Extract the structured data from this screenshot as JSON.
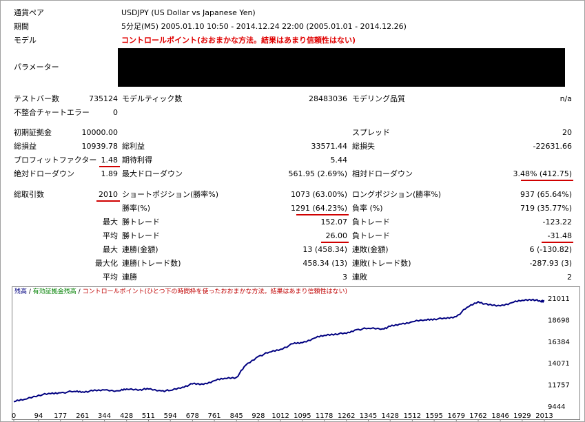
{
  "header": {
    "symbol_label": "通貨ペア",
    "symbol_value": "USDJPY (US Dollar vs Japanese Yen)",
    "period_label": "期間",
    "period_value": "5分足(M5) 2005.01.10 10:50 - 2014.12.24 22:00 (2005.01.01 - 2014.12.26)",
    "model_label": "モデル",
    "model_value": "コントロールポイント(おおまかな方法。結果はあまり信頼性はない)",
    "params_label": "パラメーター"
  },
  "stats": {
    "test_bars_label": "テストバー数",
    "test_bars": "735124",
    "model_ticks_label": "モデルティック数",
    "model_ticks": "28483036",
    "model_quality_label": "モデリング品質",
    "model_quality": "n/a",
    "mismatch_label": "不整合チャートエラー",
    "mismatch": "0",
    "initial_deposit_label": "初期証拠金",
    "initial_deposit": "10000.00",
    "spread_label": "スプレッド",
    "spread": "20",
    "net_profit_label": "総損益",
    "net_profit": "10939.78",
    "gross_profit_label": "総利益",
    "gross_profit": "33571.44",
    "gross_loss_label": "総損失",
    "gross_loss": "-22631.66",
    "profit_factor_label": "プロフィットファクター",
    "profit_factor": "1.48",
    "expected_payoff_label": "期待利得",
    "expected_payoff": "5.44",
    "abs_dd_label": "絶対ドローダウン",
    "abs_dd": "1.89",
    "max_dd_label": "最大ドローダウン",
    "max_dd": "561.95 (2.69%)",
    "rel_dd_label": "相対ドローダウン",
    "rel_dd": "3.48% (412.75)",
    "total_trades_label": "総取引数",
    "total_trades": "2010",
    "short_label": "ショートポジション(勝率%)",
    "short": "1073 (63.00%)",
    "long_label": "ロングポジション(勝率%)",
    "long": "937 (65.64%)",
    "win_rate_label": "勝率(%)",
    "win_rate": "1291 (64.23%)",
    "loss_rate_label": "負率 (%)",
    "loss_rate": "719 (35.77%)",
    "max_label": "最大",
    "max_win_label": "勝トレード",
    "max_win": "152.07",
    "max_loss_label": "負トレード",
    "max_loss": "-123.22",
    "avg_label": "平均",
    "avg_win_label": "勝トレード",
    "avg_win": "26.00",
    "avg_loss_label": "負トレード",
    "avg_loss": "-31.48",
    "max2_label": "最大",
    "cons_wins_label": "連勝(金額)",
    "cons_wins": "13 (458.34)",
    "cons_losses_label": "連敗(金額)",
    "cons_losses": "6 (-130.82)",
    "maxi_label": "最大化",
    "cons_profit_label": "連勝(トレード数)",
    "cons_profit": "458.34 (13)",
    "cons_loss_label": "連敗(トレード数)",
    "cons_loss": "-287.93 (3)",
    "avg2_label": "平均",
    "avg_cons_wins_label": "連勝",
    "avg_cons_wins": "3",
    "avg_cons_losses_label": "連敗",
    "avg_cons_losses": "2"
  },
  "legend": {
    "balance": "残高",
    "sep1": " / ",
    "equity": "有効証拠金残高",
    "sep2": " / ",
    "model": "コントロールポイント(ひとつ下の時間枠を使ったおおまかな方法。結果はあまり信頼性はない)"
  },
  "colors": {
    "balance": "#000080",
    "equity": "#008000",
    "model_text": "#c00000",
    "underline": "#d00000"
  },
  "chart_data": {
    "type": "line",
    "x_ticks": [
      0,
      94,
      177,
      261,
      344,
      428,
      511,
      594,
      678,
      761,
      845,
      928,
      1012,
      1095,
      1178,
      1262,
      1345,
      1428,
      1512,
      1595,
      1679,
      1762,
      1846,
      1929,
      2013
    ],
    "y_ticks": [
      9444,
      11757,
      14071,
      16384,
      18698,
      21011
    ],
    "xlim": [
      0,
      2013
    ],
    "ylim": [
      9444,
      21011
    ],
    "series": [
      {
        "name": "残高",
        "x": [
          0,
          40,
          94,
          140,
          177,
          230,
          261,
          300,
          344,
          400,
          428,
          480,
          511,
          560,
          594,
          640,
          678,
          720,
          761,
          800,
          845,
          880,
          928,
          970,
          1012,
          1060,
          1095,
          1140,
          1178,
          1220,
          1262,
          1300,
          1345,
          1400,
          1428,
          1470,
          1512,
          1560,
          1595,
          1640,
          1679,
          1720,
          1762,
          1800,
          1846,
          1890,
          1929,
          1970,
          2000,
          2013
        ],
        "values": [
          10000,
          10250,
          10700,
          10850,
          10950,
          11100,
          11050,
          11150,
          11250,
          11150,
          11350,
          11300,
          11350,
          11150,
          11200,
          11550,
          11900,
          11850,
          12250,
          12500,
          12600,
          13900,
          14850,
          15300,
          15600,
          16200,
          16300,
          16800,
          17100,
          17250,
          17300,
          17700,
          17850,
          17800,
          18050,
          18300,
          18550,
          18750,
          18850,
          18900,
          19100,
          20100,
          20700,
          20350,
          20250,
          20600,
          20850,
          20950,
          20700,
          20800
        ]
      }
    ]
  }
}
